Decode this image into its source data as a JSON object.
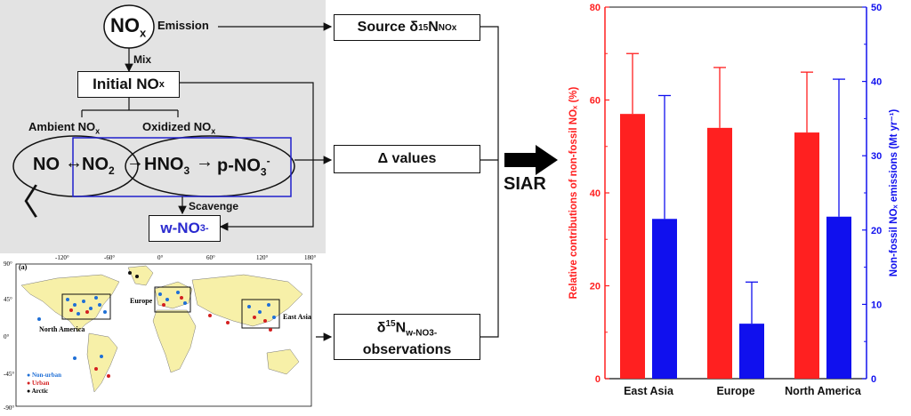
{
  "flow": {
    "nox_top": "NO",
    "nox_top_sub": "x",
    "emission_label": "Emission",
    "mix_label": "Mix",
    "initial_nox": "Initial NO",
    "initial_nox_sub": "x",
    "ambient_nox": "Ambient NO",
    "ambient_nox_sub": "x",
    "oxidized_nox": "Oxidized NO",
    "oxidized_nox_sub": "x",
    "no_label": "NO",
    "double_arrow": "↔",
    "no2_label": "NO",
    "no2_sub": "2",
    "hno3_label": "HNO",
    "hno3_sub": "3",
    "right_arrow": "→",
    "pno3_label": "p-NO",
    "pno3_sub": "3",
    "pno3_sup": "-",
    "scavenge_label": "Scavenge",
    "wno3_label": "w-NO",
    "wno3_sub": "3",
    "wno3_sup": "-",
    "chevron_glyph": "〈"
  },
  "inputs": {
    "source_label": "Source δ",
    "source_sup": "15",
    "source_n": "N",
    "source_sub": "NOx",
    "delta_label": "Δ values",
    "obs_label_d": "δ",
    "obs_sup": "15",
    "obs_n": "N",
    "obs_sub": "w-NO3-",
    "obs_label2": "observations"
  },
  "model_label": "SIAR",
  "map": {
    "panel_label": "(a)",
    "lon_ticks": [
      "-120°",
      "-60°",
      "0°",
      "60°",
      "120°",
      "180°"
    ],
    "lat_ticks": [
      "90°",
      "45°",
      "0°",
      "-45°",
      "-90°"
    ],
    "region_labels": [
      "North America",
      "Europe",
      "East Asia"
    ],
    "legend": [
      {
        "label": "Non-urban",
        "color": "#1f6fd6"
      },
      {
        "label": "Urban",
        "color": "#d42020"
      },
      {
        "label": "Arctic",
        "color": "#111111"
      }
    ]
  },
  "chart_data": {
    "type": "bar",
    "categories": [
      "East Asia",
      "Europe",
      "North America"
    ],
    "series": [
      {
        "values": [
          57,
          54,
          53
        ],
        "errors": [
          13,
          13,
          13
        ],
        "color": "#ff2020",
        "axis": "left"
      },
      {
        "values": [
          21.5,
          7.4,
          21.8
        ],
        "errors": [
          16.6,
          5.6,
          18.5
        ],
        "color": "#1010ee",
        "axis": "right"
      }
    ],
    "ylabel_left": "Relative contributions of non-fossil NOₓ (%)",
    "ylabel_right": "Non-fossil NOₓ emissions (Mt yr⁻¹)",
    "ylim_left": [
      0,
      80
    ],
    "ylim_right": [
      0,
      50
    ],
    "yticks_left": [
      "0",
      "20",
      "40",
      "60",
      "80"
    ],
    "yticks_right": [
      "0",
      "10",
      "20",
      "30",
      "40",
      "50"
    ]
  }
}
